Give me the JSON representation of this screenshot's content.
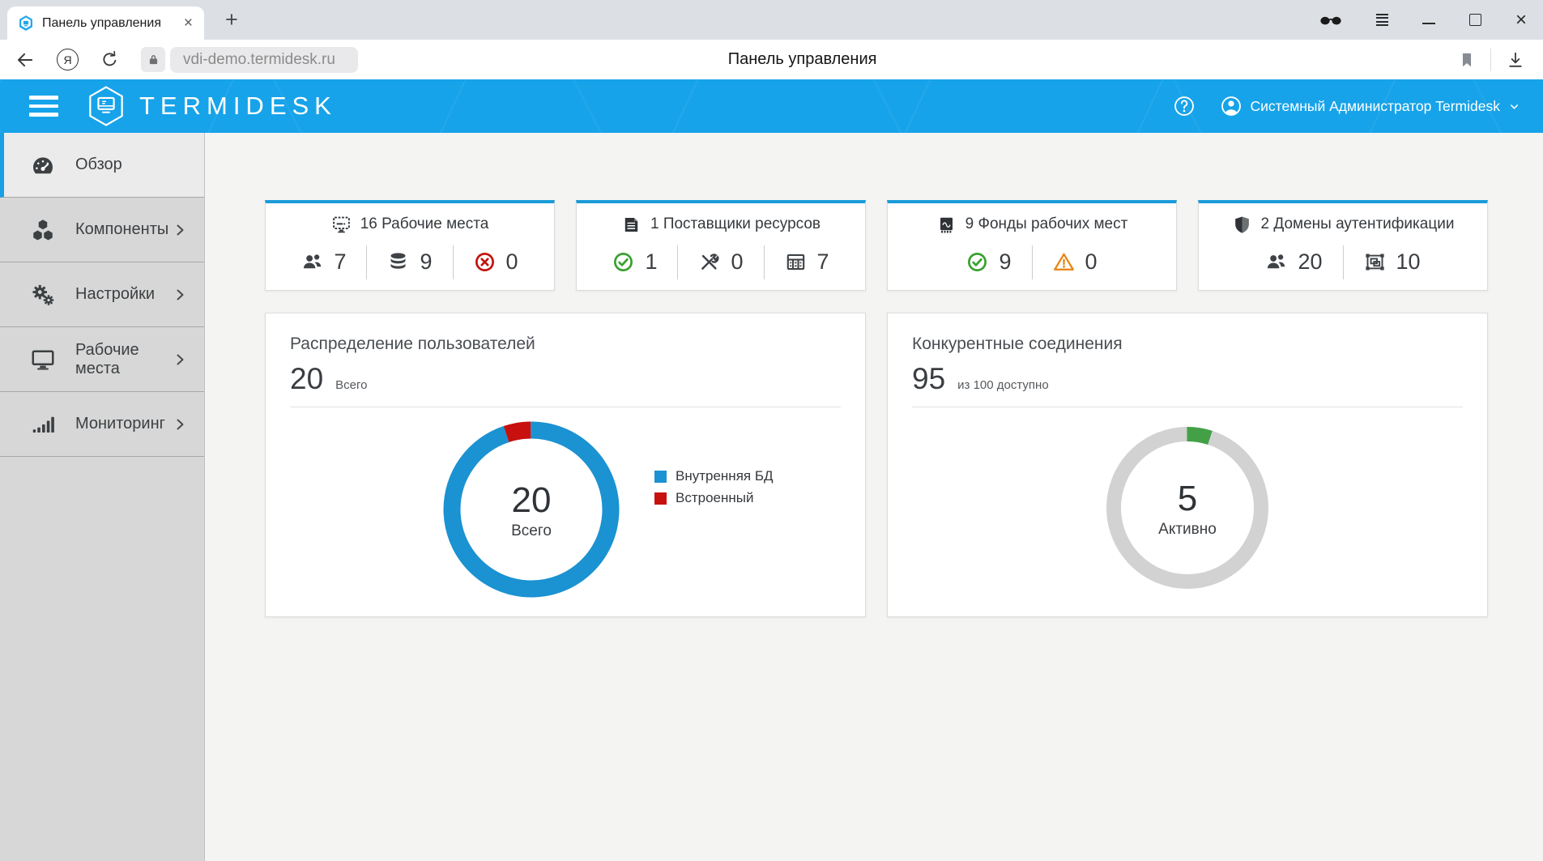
{
  "browser": {
    "tab": {
      "title": "Панель управления",
      "favicon": "termidesk-favicon"
    },
    "glyphs": {
      "new_tab": "+",
      "close_tab": "×",
      "close_window": "×",
      "yandex": "Я",
      "help": "?"
    },
    "address": {
      "url": "vdi-demo.termidesk.ru",
      "page_title": "Панель управления"
    },
    "toolbar_icons": [
      "back-icon",
      "yandex-icon",
      "refresh-icon",
      "lock-icon",
      "bookmark-icon",
      "download-icon"
    ],
    "window_icons": [
      "incognito-glasses-icon",
      "browser-menu-icon",
      "minimize-icon",
      "maximize-icon",
      "close-icon"
    ]
  },
  "header": {
    "brand": "TERMIDESK",
    "user": "Системный Администратор Termidesk",
    "icons": [
      "menu-icon",
      "logo-hexagon-icon",
      "help-icon",
      "user-icon",
      "chevron-down-icon"
    ],
    "accent_color": "#17a3e9"
  },
  "sidebar": {
    "items": [
      {
        "id": "overview",
        "label": "Обзор",
        "icon": "tachometer-icon",
        "active": true,
        "chevron": false
      },
      {
        "id": "components",
        "label": "Компоненты",
        "icon": "cubes-icon",
        "active": false,
        "chevron": true
      },
      {
        "id": "settings",
        "label": "Настройки",
        "icon": "gears-icon",
        "active": false,
        "chevron": true
      },
      {
        "id": "workplaces",
        "label": "Рабочие места",
        "icon": "desktop-icon",
        "active": false,
        "chevron": true
      },
      {
        "id": "monitoring",
        "label": "Мониторинг",
        "icon": "signal-icon",
        "active": false,
        "chevron": true
      }
    ]
  },
  "stat_cards": [
    {
      "id": "workplaces",
      "title": "16 Рабочие места",
      "icon": "workplaces-icon",
      "stats": [
        {
          "icon": "users-icon",
          "color": "#3f4348",
          "value": "7"
        },
        {
          "icon": "database-icon",
          "color": "#3f4348",
          "value": "9"
        },
        {
          "icon": "circle-x-icon",
          "color": "#c2120f",
          "value": "0"
        }
      ]
    },
    {
      "id": "providers",
      "title": "1 Поставщики ресурсов",
      "icon": "server-icon",
      "stats": [
        {
          "icon": "circle-check-icon",
          "color": "#38a12e",
          "value": "1"
        },
        {
          "icon": "tools-icon",
          "color": "#3f4348",
          "value": "0"
        },
        {
          "icon": "table-icon",
          "color": "#3f4348",
          "value": "7"
        }
      ]
    },
    {
      "id": "pools",
      "title": "9 Фонды рабочих мест",
      "icon": "microchip-icon",
      "stats": [
        {
          "icon": "circle-check-icon",
          "color": "#38a12e",
          "value": "9"
        },
        {
          "icon": "warning-icon",
          "color": "#e8830f",
          "value": "0"
        }
      ]
    },
    {
      "id": "auth-domains",
      "title": "2 Домены аутентификации",
      "icon": "shield-icon",
      "stats": [
        {
          "icon": "users-icon",
          "color": "#3f4348",
          "value": "20"
        },
        {
          "icon": "object-group-icon",
          "color": "#3f4348",
          "value": "10"
        }
      ]
    }
  ],
  "colors": {
    "card_top_border": "#1a9bd8",
    "chart_blue": "#1b92d1",
    "chart_red": "#c8100e",
    "chart_green": "#43a047",
    "chart_gray": "#d2d2d2"
  },
  "chart_data": [
    {
      "type": "pie",
      "variant": "donut",
      "title": "Распределение пользователей",
      "headline_value": "20",
      "headline_label": "Всего",
      "center_value": "20",
      "center_label": "Всего",
      "series": [
        {
          "name": "Внутренняя БД",
          "value": 19,
          "color": "#1b92d1"
        },
        {
          "name": "Встроенный",
          "value": 1,
          "color": "#c8100e"
        }
      ],
      "legend_position": "right"
    },
    {
      "type": "pie",
      "variant": "donut",
      "title": "Конкурентные соединения",
      "headline_value": "95",
      "headline_label": "из 100 доступно",
      "center_value": "5",
      "center_label": "Активно",
      "series": [
        {
          "name": "Активно",
          "value": 5,
          "color": "#43a047"
        },
        {
          "name": "Доступно",
          "value": 95,
          "color": "#d2d2d2"
        }
      ],
      "legend_position": "none"
    }
  ]
}
